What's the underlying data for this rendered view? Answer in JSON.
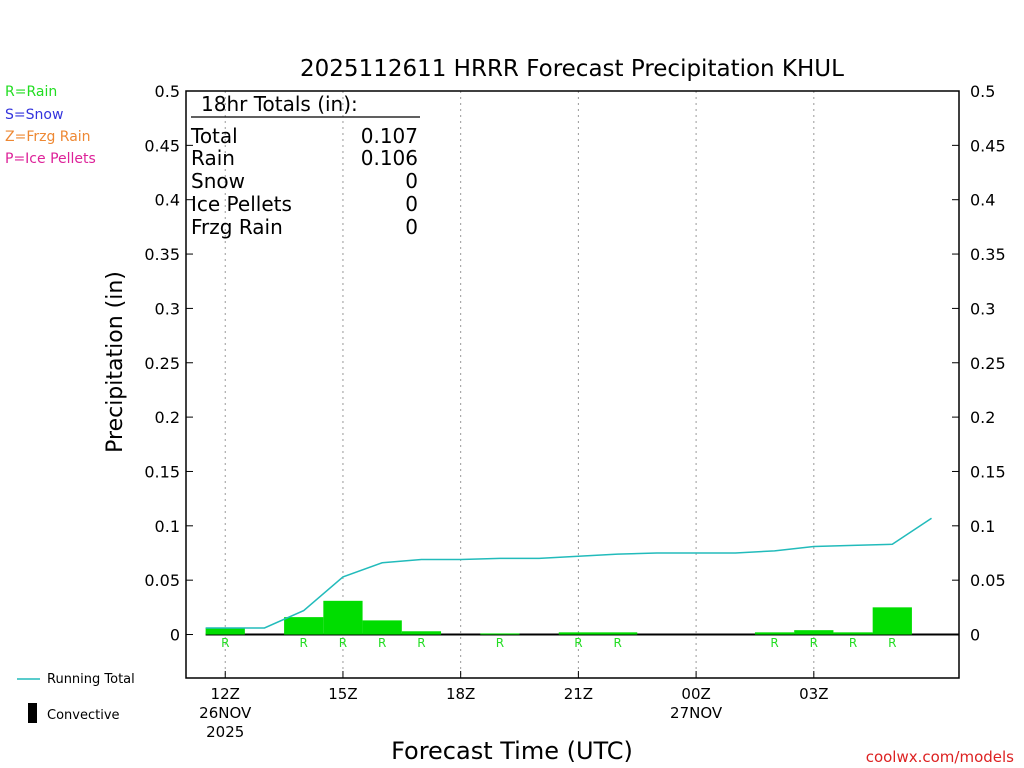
{
  "title": "2025112611 HRRR Forecast Precipitation KHUL",
  "ylabel": "Precipitation (in)",
  "xlabel": "Forecast Time (UTC)",
  "credit": "coolwx.com/models",
  "legend_types": [
    {
      "label": "R=Rain",
      "color": "#22dd22"
    },
    {
      "label": "S=Snow",
      "color": "#3333dd"
    },
    {
      "label": "Z=Frzg Rain",
      "color": "#ee8833"
    },
    {
      "label": "P=Ice Pellets",
      "color": "#dd2299"
    }
  ],
  "legend_bottom": {
    "running_total": {
      "label": "Running Total",
      "color": "#22bbbb"
    },
    "convective": {
      "label": "Convective",
      "color": "#000000"
    }
  },
  "totals": {
    "header": "18hr Totals (in):",
    "rows": [
      {
        "label": "Total",
        "value": "0.107"
      },
      {
        "label": "Rain",
        "value": "0.106"
      },
      {
        "label": "Snow",
        "value": "0"
      },
      {
        "label": "Ice Pellets",
        "value": "0"
      },
      {
        "label": "Frzg Rain",
        "value": "0"
      }
    ]
  },
  "chart_data": {
    "type": "bar",
    "ylim": [
      -0.04,
      0.5
    ],
    "xlim": [
      -1,
      18.7
    ],
    "yticks": [
      "0",
      "0.05",
      "0.1",
      "0.15",
      "0.2",
      "0.25",
      "0.3",
      "0.35",
      "0.4",
      "0.45",
      "0.5"
    ],
    "ytick_values": [
      0,
      0.05,
      0.1,
      0.15,
      0.2,
      0.25,
      0.3,
      0.35,
      0.4,
      0.45,
      0.5
    ],
    "xticks": [
      {
        "hour": 0,
        "lines": [
          "12Z",
          "26NOV",
          "2025"
        ]
      },
      {
        "hour": 3,
        "lines": [
          "15Z"
        ]
      },
      {
        "hour": 6,
        "lines": [
          "18Z"
        ]
      },
      {
        "hour": 9,
        "lines": [
          "21Z"
        ]
      },
      {
        "hour": 12,
        "lines": [
          "00Z",
          "27NOV"
        ]
      },
      {
        "hour": 15,
        "lines": [
          "03Z"
        ]
      }
    ],
    "series": [
      {
        "name": "Running Total",
        "hours": [
          -0.5,
          1,
          2,
          3,
          4,
          5,
          6,
          7,
          8,
          9,
          10,
          11,
          12,
          13,
          14,
          15,
          16,
          17,
          18
        ],
        "values": [
          0.006,
          0.006,
          0.022,
          0.053,
          0.066,
          0.069,
          0.069,
          0.07,
          0.07,
          0.072,
          0.074,
          0.075,
          0.075,
          0.075,
          0.077,
          0.081,
          0.082,
          0.083,
          0.107
        ]
      }
    ],
    "bars": [
      {
        "hour": 0,
        "value": 0.006,
        "type": "R"
      },
      {
        "hour": 1,
        "value": 0.0,
        "type": ""
      },
      {
        "hour": 2,
        "value": 0.016,
        "type": "R"
      },
      {
        "hour": 3,
        "value": 0.031,
        "type": "R"
      },
      {
        "hour": 4,
        "value": 0.013,
        "type": "R"
      },
      {
        "hour": 5,
        "value": 0.003,
        "type": "R"
      },
      {
        "hour": 6,
        "value": 0.0,
        "type": ""
      },
      {
        "hour": 7,
        "value": 0.001,
        "type": "R"
      },
      {
        "hour": 8,
        "value": 0.0,
        "type": ""
      },
      {
        "hour": 9,
        "value": 0.002,
        "type": "R"
      },
      {
        "hour": 10,
        "value": 0.002,
        "type": "R"
      },
      {
        "hour": 11,
        "value": 0.0,
        "type": ""
      },
      {
        "hour": 12,
        "value": 0.0,
        "type": ""
      },
      {
        "hour": 13,
        "value": 0.0,
        "type": ""
      },
      {
        "hour": 14,
        "value": 0.002,
        "type": "R"
      },
      {
        "hour": 15,
        "value": 0.004,
        "type": "R"
      },
      {
        "hour": 16,
        "value": 0.002,
        "type": "R"
      },
      {
        "hour": 17,
        "value": 0.025,
        "type": "R"
      }
    ],
    "grid": "vertical dotted",
    "legend": "left"
  }
}
